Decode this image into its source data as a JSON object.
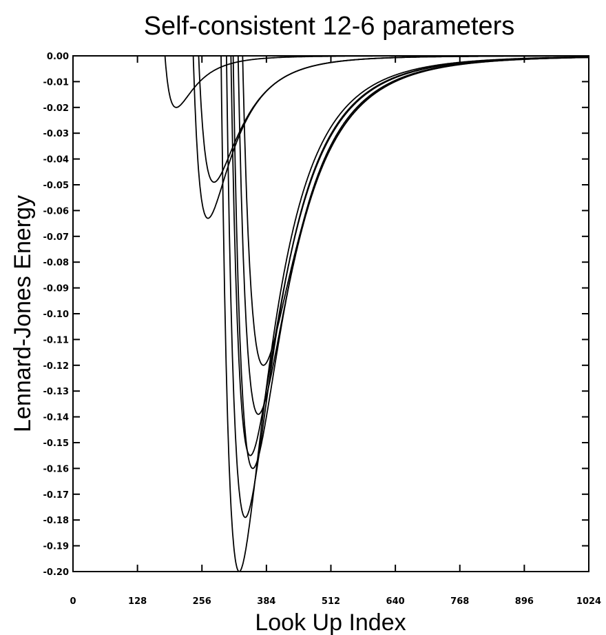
{
  "chart_data": {
    "type": "line",
    "title": "Self-consistent 12-6 parameters",
    "xlabel": "Look Up Index",
    "ylabel": "Lennard-Jones Energy",
    "xlim": [
      0,
      1024
    ],
    "ylim": [
      -0.2,
      0.0
    ],
    "x_ticks": [
      "0",
      "128",
      "256",
      "384",
      "512",
      "640",
      "768",
      "896",
      "1024"
    ],
    "y_ticks": [
      "0.00",
      "-0.01",
      "-0.02",
      "-0.03",
      "-0.04",
      "-0.05",
      "-0.06",
      "-0.07",
      "-0.08",
      "-0.09",
      "-0.10",
      "-0.11",
      "-0.12",
      "-0.13",
      "-0.14",
      "-0.15",
      "-0.16",
      "-0.17",
      "-0.18",
      "-0.19",
      "-0.20"
    ],
    "grid": false,
    "line_color": "#000000",
    "series": [
      {
        "min_x": 205,
        "min_y": -0.02
      },
      {
        "min_x": 280,
        "min_y": -0.049
      },
      {
        "min_x": 268,
        "min_y": -0.063
      },
      {
        "min_x": 378,
        "min_y": -0.12
      },
      {
        "min_x": 368,
        "min_y": -0.139
      },
      {
        "min_x": 352,
        "min_y": -0.155
      },
      {
        "min_x": 357,
        "min_y": -0.16
      },
      {
        "min_x": 342,
        "min_y": -0.179
      },
      {
        "min_x": 330,
        "min_y": -0.2
      }
    ]
  }
}
